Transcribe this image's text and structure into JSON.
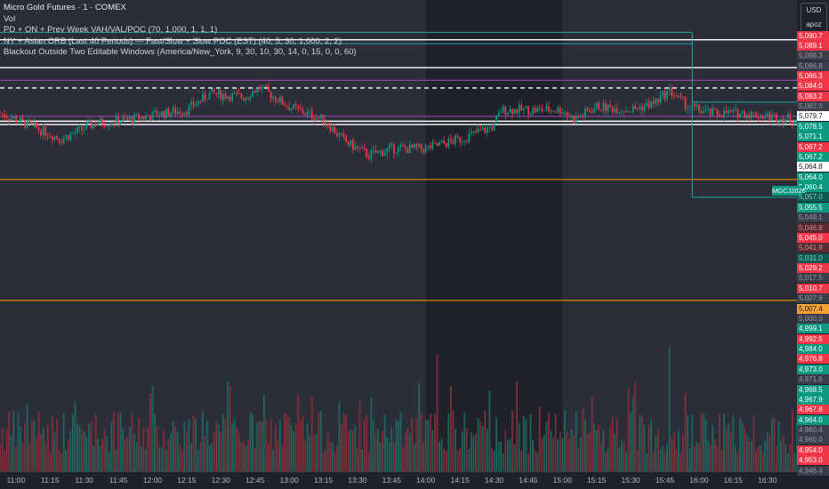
{
  "legend": {
    "title": "Micro Gold Futures · 1 · COMEX",
    "volume": "Vol",
    "indicator1": "PD + ON + Prev Week VAH/VAL/POC (70, 1,000, 1, 1, 1)",
    "indicator2": "NY + Asian ORB (Last 40 Periods) — Fast/Slow + Slow POC (EST) (40, 5, 30, 1,000, 2, 2)",
    "indicator3": "Blackout Outside Two Editable Windows (America/New_York, 9, 30, 10, 30, 14, 0, 15, 0, 0, 60)"
  },
  "currency": {
    "code": "USD",
    "setting": "apoz"
  },
  "ticker_tag": "MGCJ2026",
  "price_tags": [
    {
      "label": "5,090.7",
      "color": "red"
    },
    {
      "label": "5,089.1",
      "color": "red"
    },
    {
      "label": "5,088.3",
      "color": "gray"
    },
    {
      "label": "5,086.8",
      "color": "gray"
    },
    {
      "label": "5,086.3",
      "color": "red"
    },
    {
      "label": "5,084.0",
      "color": "red"
    },
    {
      "label": "5,083.2",
      "color": "red"
    },
    {
      "label": "5,082.0",
      "color": "gray"
    },
    {
      "label": "5,079.7",
      "color": "white"
    },
    {
      "label": "5,078.5",
      "color": "green"
    },
    {
      "label": "5,071.1",
      "color": "green"
    },
    {
      "label": "5,067.2",
      "color": "red"
    },
    {
      "label": "5,067.2",
      "color": "green"
    },
    {
      "label": "5,064.8",
      "color": "white"
    },
    {
      "label": "5,064.0",
      "color": "green"
    },
    {
      "label": "5,060.4",
      "color": "green"
    },
    {
      "label": "5,057.0",
      "color": "teal"
    },
    {
      "label": "5,055.5",
      "color": "green"
    },
    {
      "label": "5,049.1",
      "color": "gray"
    },
    {
      "label": "5,046.8",
      "color": "dim"
    },
    {
      "label": "5,045.0",
      "color": "red"
    },
    {
      "label": "5,041.9",
      "color": "dim"
    },
    {
      "label": "5,031.0",
      "color": "teal"
    },
    {
      "label": "5,029.2",
      "color": "red"
    },
    {
      "label": "5,017.5",
      "color": "gray"
    },
    {
      "label": "5,010.7",
      "color": "red"
    },
    {
      "label": "5,007.9",
      "color": "gray"
    },
    {
      "label": "5,007.4",
      "color": "orange"
    },
    {
      "label": "5,000.0",
      "color": "gray"
    },
    {
      "label": "4,999.1",
      "color": "green"
    },
    {
      "label": "4,992.5",
      "color": "red"
    },
    {
      "label": "4,984.0",
      "color": "green"
    },
    {
      "label": "4,976.8",
      "color": "red"
    },
    {
      "label": "4,973.0",
      "color": "green"
    },
    {
      "label": "4,971.6",
      "color": "gray"
    },
    {
      "label": "4,968.5",
      "color": "green"
    },
    {
      "label": "4,967.9",
      "color": "green"
    },
    {
      "label": "4,967.8",
      "color": "red"
    },
    {
      "label": "4,964.0",
      "color": "green"
    },
    {
      "label": "4,960.4",
      "color": "gray"
    },
    {
      "label": "4,960.0",
      "color": "gray"
    },
    {
      "label": "4,954.0",
      "color": "red"
    },
    {
      "label": "4,953.0",
      "color": "red"
    },
    {
      "label": "4,946.4",
      "color": "gray"
    }
  ],
  "time_labels": [
    "11:00",
    "11:15",
    "11:30",
    "11:45",
    "12:00",
    "12:15",
    "12:30",
    "12:45",
    "13:00",
    "13:15",
    "13:30",
    "13:45",
    "14:00",
    "14:15",
    "14:30",
    "14:45",
    "15:00",
    "15:15",
    "15:30",
    "15:45",
    "16:00",
    "16:15",
    "16:30"
  ],
  "chart_data": {
    "type": "candlestick",
    "x_start": "10:53",
    "x_end": "16:43",
    "bar_interval_minutes": 1,
    "y_range": [
      4946,
      5092
    ],
    "blackout_window": [
      "14:00",
      "15:00"
    ],
    "close_path": [
      {
        "t": "10:53",
        "p": 5057
      },
      {
        "t": "11:00",
        "p": 5055
      },
      {
        "t": "11:10",
        "p": 5052
      },
      {
        "t": "11:20",
        "p": 5049
      },
      {
        "t": "11:35",
        "p": 5054
      },
      {
        "t": "11:50",
        "p": 5055
      },
      {
        "t": "12:05",
        "p": 5057
      },
      {
        "t": "12:15",
        "p": 5058
      },
      {
        "t": "12:25",
        "p": 5063
      },
      {
        "t": "12:40",
        "p": 5062
      },
      {
        "t": "12:47",
        "p": 5065
      },
      {
        "t": "13:00",
        "p": 5059
      },
      {
        "t": "13:15",
        "p": 5055
      },
      {
        "t": "13:25",
        "p": 5048
      },
      {
        "t": "13:35",
        "p": 5044
      },
      {
        "t": "13:45",
        "p": 5046
      },
      {
        "t": "14:00",
        "p": 5046
      },
      {
        "t": "14:15",
        "p": 5049
      },
      {
        "t": "14:30",
        "p": 5053
      },
      {
        "t": "14:33",
        "p": 5058
      },
      {
        "t": "14:45",
        "p": 5058
      },
      {
        "t": "15:00",
        "p": 5058
      },
      {
        "t": "15:05",
        "p": 5055
      },
      {
        "t": "15:15",
        "p": 5059
      },
      {
        "t": "15:30",
        "p": 5058
      },
      {
        "t": "15:40",
        "p": 5060
      },
      {
        "t": "15:47",
        "p": 5064
      },
      {
        "t": "15:55",
        "p": 5059
      },
      {
        "t": "16:05",
        "p": 5057
      },
      {
        "t": "16:20",
        "p": 5057
      },
      {
        "t": "16:30",
        "p": 5056
      },
      {
        "t": "16:43",
        "p": 5055
      }
    ],
    "horizontal_levels": [
      {
        "price": 5079.7,
        "color": "#ffffff",
        "style": "solid",
        "end": "full"
      },
      {
        "price": 5078.5,
        "color": "#26a69a",
        "style": "solid",
        "end": "15:57"
      },
      {
        "price": 5082.0,
        "color": "#26a69a",
        "style": "solid",
        "end": "15:57"
      },
      {
        "price": 5071.1,
        "color": "#ffffff",
        "style": "solid",
        "end": "full"
      },
      {
        "price": 5064.8,
        "color": "#ffffff",
        "style": "dashed",
        "end": "full"
      },
      {
        "price": 5067.2,
        "color": "#ab47bc",
        "style": "solid",
        "end": "full"
      },
      {
        "price": 5056.0,
        "color": "#ab47bc",
        "style": "solid",
        "end": "full"
      },
      {
        "price": 5054.5,
        "color": "#ffffff",
        "style": "solid",
        "end": "full"
      },
      {
        "price": 5053.5,
        "color": "#ffffff",
        "style": "solid",
        "end": "full"
      },
      {
        "price": 5036.5,
        "color": "#ff9800",
        "style": "solid",
        "end": "full"
      },
      {
        "price": 4999.1,
        "color": "#ff9800",
        "style": "solid",
        "end": "full"
      }
    ],
    "volume_peaks": [
      {
        "t": "14:05",
        "v": 0.95
      },
      {
        "t": "15:47",
        "v": 1.0
      },
      {
        "t": "13:10",
        "v": 0.6
      },
      {
        "t": "11:05",
        "v": 0.55
      }
    ],
    "colors": {
      "up": "#089981",
      "down": "#f23645",
      "up_volume": "#1e6b62",
      "down_volume": "#8a2f39",
      "background": "#2a2e39",
      "blackout": "#1f222a"
    }
  }
}
